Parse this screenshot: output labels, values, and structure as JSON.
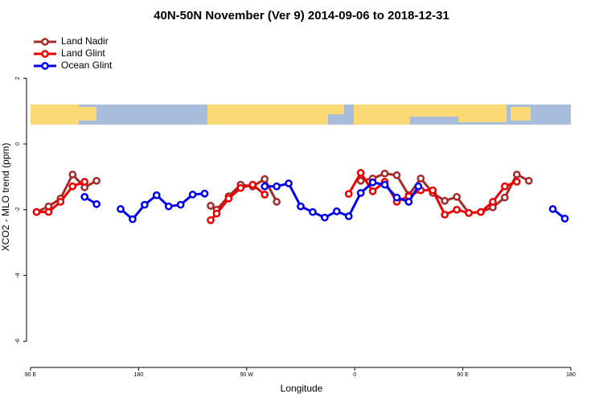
{
  "chart_data": {
    "type": "line",
    "title": "40N-50N November (Ver 9)   2014-09-06 to 2018-12-31",
    "xlabel": "Longitude",
    "ylabel": "XCO2 - MLO trend (ppm)",
    "xlim": [
      90,
      540
    ],
    "ylim": [
      -6.7,
      3.4
    ],
    "xticks": [
      {
        "value": 90,
        "label": "90 E"
      },
      {
        "value": 180,
        "label": "180"
      },
      {
        "value": 270,
        "label": "90 W"
      },
      {
        "value": 360,
        "label": "0"
      },
      {
        "value": 450,
        "label": "90 E"
      },
      {
        "value": 540,
        "label": "180"
      }
    ],
    "yticks": [
      -6,
      -4,
      -2,
      0,
      2
    ],
    "legend": "top-left",
    "series": [
      {
        "name": "Land Nadir",
        "color": "#a52a2a",
        "x": [
          95,
          105,
          115,
          125,
          135,
          145,
          null,
          240,
          245,
          255,
          265,
          275,
          285,
          295,
          null,
          365,
          375,
          385,
          395,
          405,
          415,
          425,
          435,
          445,
          455,
          465,
          475,
          485,
          495,
          505
        ],
        "values": [
          -2.07,
          -1.9,
          -1.66,
          -0.93,
          -1.32,
          -1.12,
          null,
          -1.88,
          -2.0,
          -1.59,
          -1.24,
          -1.29,
          -1.07,
          -1.76,
          null,
          -1.12,
          -1.05,
          -0.9,
          -0.95,
          -1.56,
          -1.05,
          -1.49,
          -1.73,
          -1.61,
          -2.1,
          -2.07,
          -1.93,
          -1.63,
          -0.93,
          -1.12
        ]
      },
      {
        "name": "Land Glint",
        "color": "#ee0000",
        "x": [
          95,
          105,
          115,
          125,
          135,
          null,
          240,
          245,
          255,
          265,
          275,
          285,
          null,
          355,
          365,
          375,
          385,
          395,
          405,
          415,
          425,
          435,
          445,
          455,
          465,
          475,
          485,
          495
        ],
        "values": [
          -2.07,
          -2.07,
          -1.76,
          -1.29,
          -1.15,
          null,
          -2.32,
          -2.12,
          -1.66,
          -1.34,
          -1.24,
          -1.54,
          null,
          -1.52,
          -0.88,
          -1.44,
          -1.15,
          -1.76,
          -1.59,
          -1.41,
          -1.41,
          -2.15,
          -2.0,
          -2.1,
          -2.07,
          -1.76,
          -1.29,
          -1.15
        ]
      },
      {
        "name": "Ocean Glint",
        "color": "#0000ee",
        "x": [
          135,
          145,
          null,
          165,
          175,
          185,
          195,
          205,
          215,
          225,
          235,
          null,
          285,
          295,
          305,
          315,
          325,
          335,
          345,
          355,
          365,
          375,
          385,
          395,
          405,
          413,
          null,
          525,
          535
        ],
        "values": [
          -1.61,
          -1.83,
          null,
          -1.98,
          -2.29,
          -1.85,
          -1.56,
          -1.9,
          -1.85,
          -1.54,
          -1.51,
          null,
          -1.29,
          -1.29,
          -1.2,
          -1.9,
          -2.07,
          -2.24,
          -2.05,
          -2.2,
          -1.49,
          -1.17,
          -1.24,
          -1.63,
          -1.76,
          -1.29,
          null,
          -1.98,
          -2.27
        ]
      }
    ]
  }
}
